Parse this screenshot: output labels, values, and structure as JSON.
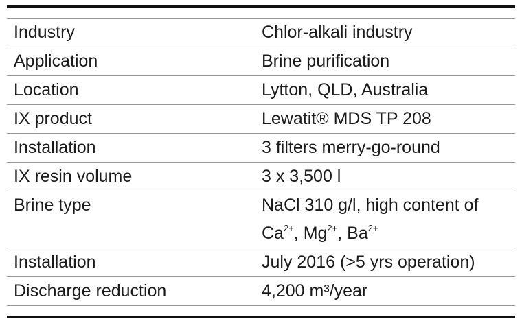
{
  "table": {
    "rows": [
      [
        "Industry",
        "Chlor-alkali industry"
      ],
      [
        "Application",
        "Brine purification"
      ],
      [
        "Location",
        "Lytton, QLD, Australia"
      ],
      [
        "IX product",
        "Lewatit® MDS TP 208"
      ],
      [
        "Installation",
        "3 filters merry-go-round"
      ],
      [
        "IX resin volume",
        "3 x 3,500 l"
      ],
      [
        "Brine type",
        [
          {
            "text": "NaCl 310 g/l, high content of Ca"
          },
          {
            "sup": "2+"
          },
          {
            "text": ", Mg"
          },
          {
            "sup": "2+"
          },
          {
            "text": ", Ba"
          },
          {
            "sup": "2+"
          }
        ]
      ],
      [
        "Installation",
        "July 2016 (>5 yrs operation)"
      ],
      [
        "Discharge reduction",
        "4,200 m³/year"
      ]
    ]
  }
}
